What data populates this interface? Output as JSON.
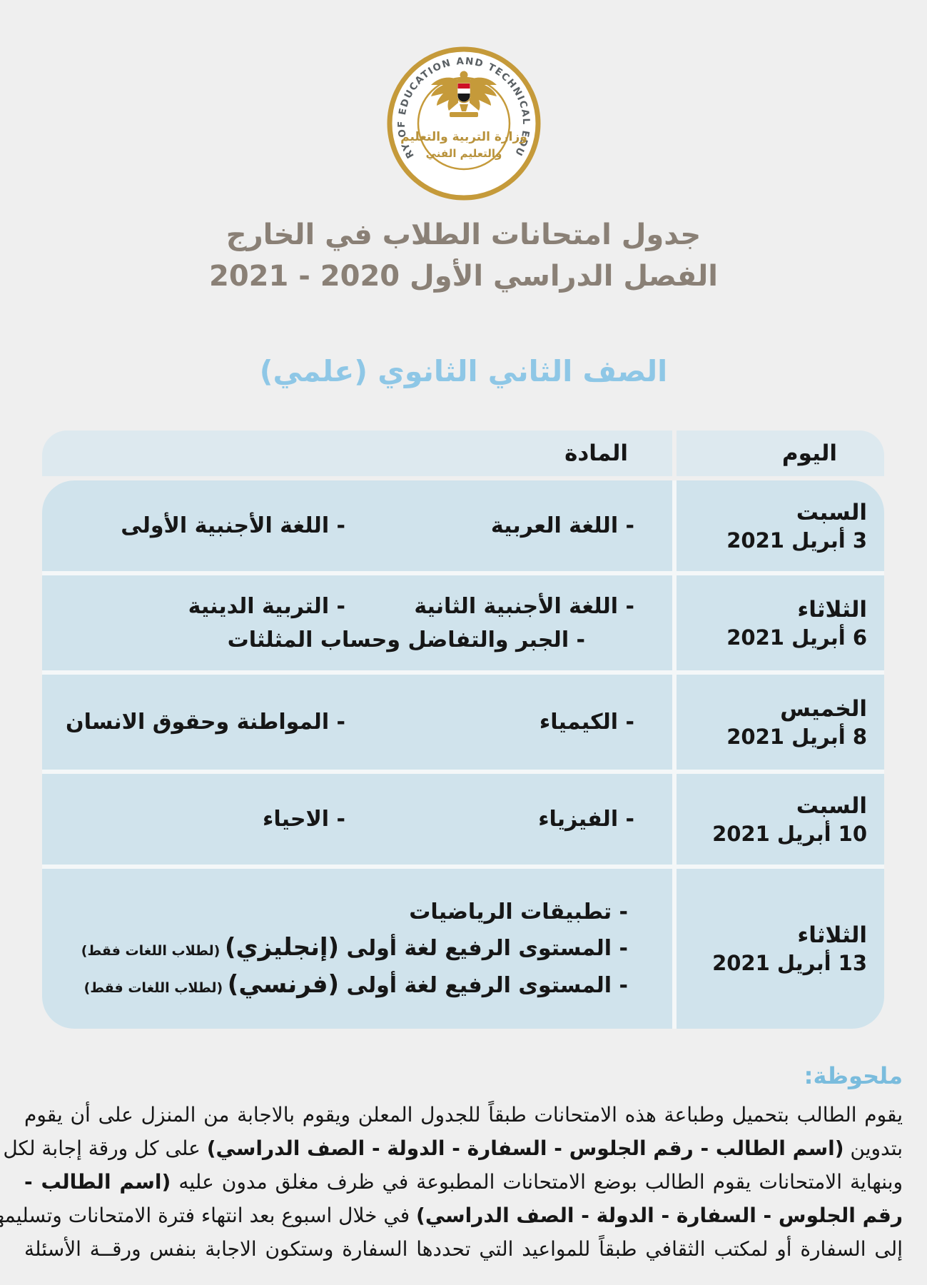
{
  "logo": {
    "ring_text": "MINISTRY OF EDUCATION AND TECHNICAL EDUCATION",
    "arabic_name_line1": "وزارة التربية والتعليم",
    "arabic_name_line2": "والتعليم الفني"
  },
  "header": {
    "title_line1": "جدول امتحانات الطلاب في الخارج",
    "title_line2": "الفصل الدراسي الأول 2020 - 2021",
    "grade_subtitle": "الصف الثاني الثانوي (علمي)"
  },
  "table": {
    "col_day": "اليوم",
    "col_subject": "المادة",
    "rows": [
      {
        "day_name": "السبت",
        "day_date": "3 أبريل 2021",
        "lines": [
          {
            "layout": "two",
            "items": [
              [
                {
                  "t": "- اللغة العربية"
                }
              ],
              [
                {
                  "t": "- اللغة الأجنبية الأولى"
                }
              ]
            ]
          }
        ]
      },
      {
        "day_name": "الثلاثاء",
        "day_date": "6 أبريل 2021",
        "lines": [
          {
            "layout": "two",
            "items": [
              [
                {
                  "t": "- اللغة الأجنبية الثانية"
                }
              ],
              [
                {
                  "t": "- التربية الدينية"
                }
              ]
            ]
          },
          {
            "layout": "mid",
            "items": [
              [
                {
                  "t": "- الجبر والتفاضل وحساب المثلثات"
                }
              ]
            ]
          }
        ]
      },
      {
        "day_name": "الخميس",
        "day_date": "8 أبريل 2021",
        "lines": [
          {
            "layout": "two",
            "items": [
              [
                {
                  "t": "- الكيمياء"
                }
              ],
              [
                {
                  "t": "- المواطنة وحقوق الانسان"
                }
              ]
            ]
          }
        ]
      },
      {
        "day_name": "السبت",
        "day_date": "10 أبريل 2021",
        "lines": [
          {
            "layout": "two",
            "items": [
              [
                {
                  "t": "- الفيزياء"
                }
              ],
              [
                {
                  "t": "- الاحياء"
                }
              ]
            ]
          }
        ]
      },
      {
        "day_name": "الثلاثاء",
        "day_date": "13 أبريل 2021",
        "lines": [
          {
            "layout": "start",
            "items": [
              [
                {
                  "t": "- تطبيقات الرياضيات"
                }
              ]
            ]
          },
          {
            "layout": "start",
            "items": [
              [
                {
                  "t": "- المستوى الرفيع لغة أولى "
                },
                {
                  "t": "(إنجليزي)",
                  "b": true
                },
                {
                  "t": " (لطلاب اللغات فقط)",
                  "s": true
                }
              ]
            ]
          },
          {
            "layout": "start",
            "items": [
              [
                {
                  "t": "- المستوى الرفيع لغة أولى "
                },
                {
                  "t": "(فرنسي)",
                  "b": true
                },
                {
                  "t": " (لطلاب اللغات فقط)",
                  "s": true
                }
              ]
            ]
          }
        ]
      }
    ]
  },
  "note": {
    "label": "ملحوظة:",
    "lines": [
      [
        {
          "t": "يقوم الطالب بتحميل وطباعة هذه الامتحانات طبقاً للجدول المعلن ويقوم بالاجابة من المنزل على أن يقوم"
        }
      ],
      [
        {
          "t": "بتدوين "
        },
        {
          "t": "(اسم الطالب - رقم الجلوس - السفارة - الدولة - الصف الدراسي)",
          "b": true
        },
        {
          "t": " على كل ورقة إجابة لكل مادة"
        }
      ],
      [
        {
          "t": "وبنهاية الامتحانات يقوم الطالب بوضع الامتحانات المطبوعة في ظرف مغلق مدون عليه "
        },
        {
          "t": "(اسم الطالب -",
          "b": true
        }
      ],
      [
        {
          "t": "رقم الجلوس - السفارة - الدولة - الصف الدراسي)",
          "b": true
        },
        {
          "t": " في خلال اسبوع بعد انتهاء فترة الامتحانات وتسليمها"
        }
      ],
      [
        {
          "t": "إلى السفارة أو لمكتب الثقافي طبقاً للمواعيد التي تحددها السفارة وستكون الاجابة بنفس ورقــة الأسئلة"
        }
      ]
    ]
  },
  "colors": {
    "page_bg": "#efefef",
    "title_color": "#8a8076",
    "subtitle_color": "#8ec7e6",
    "note_label_color": "#7abcdd",
    "table_header_bg": "#dde9ef",
    "table_row_bg": "#d0e3ec",
    "table_gap": "#f4f7f8",
    "gold": "#c59a3a",
    "flag_red": "#ce1126",
    "text_dark": "#161616"
  }
}
